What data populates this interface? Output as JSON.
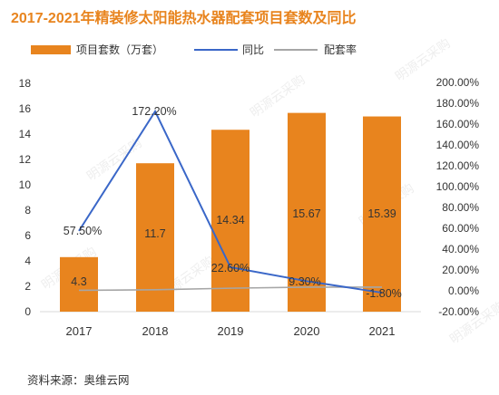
{
  "source_text": "资料来源：奥维云网",
  "watermark_text": "明源云采购",
  "colors": {
    "bar": "#e8841e",
    "line_yoy": "#3a67c8",
    "line_ratio": "#a6a6a6",
    "title": "#e8841e"
  },
  "chart_data": {
    "type": "bar",
    "title": "2017-2021年精装修太阳能热水器配套项目套数及同比",
    "categories": [
      "2017",
      "2018",
      "2019",
      "2020",
      "2021"
    ],
    "series": [
      {
        "name": "项目套数（万套）",
        "type": "bar",
        "axis": "left",
        "values": [
          4.3,
          11.7,
          14.34,
          15.67,
          15.39
        ],
        "labels": [
          "4.3",
          "11.7",
          "14.34",
          "15.67",
          "15.39"
        ]
      },
      {
        "name": "同比",
        "type": "line",
        "axis": "right",
        "values": [
          57.5,
          172.2,
          22.6,
          9.3,
          -1.8
        ],
        "labels": [
          "57.50%",
          "172.20%",
          "22.60%",
          "9.30%",
          "-1.80%"
        ]
      },
      {
        "name": "配套率",
        "type": "line",
        "axis": "right",
        "values": [
          0.5,
          1.0,
          2.5,
          3.5,
          3.5
        ]
      }
    ],
    "y_left": {
      "lim": [
        0,
        18
      ],
      "ticks": [
        "0",
        "2",
        "4",
        "6",
        "8",
        "10",
        "12",
        "14",
        "16",
        "18"
      ]
    },
    "y_right": {
      "lim": [
        -20,
        200
      ],
      "ticks": [
        "-20.00%",
        "0.00%",
        "20.00%",
        "40.00%",
        "60.00%",
        "80.00%",
        "100.00%",
        "120.00%",
        "140.00%",
        "160.00%",
        "180.00%",
        "200.00%"
      ]
    },
    "grid": false,
    "legend": "top-left"
  }
}
